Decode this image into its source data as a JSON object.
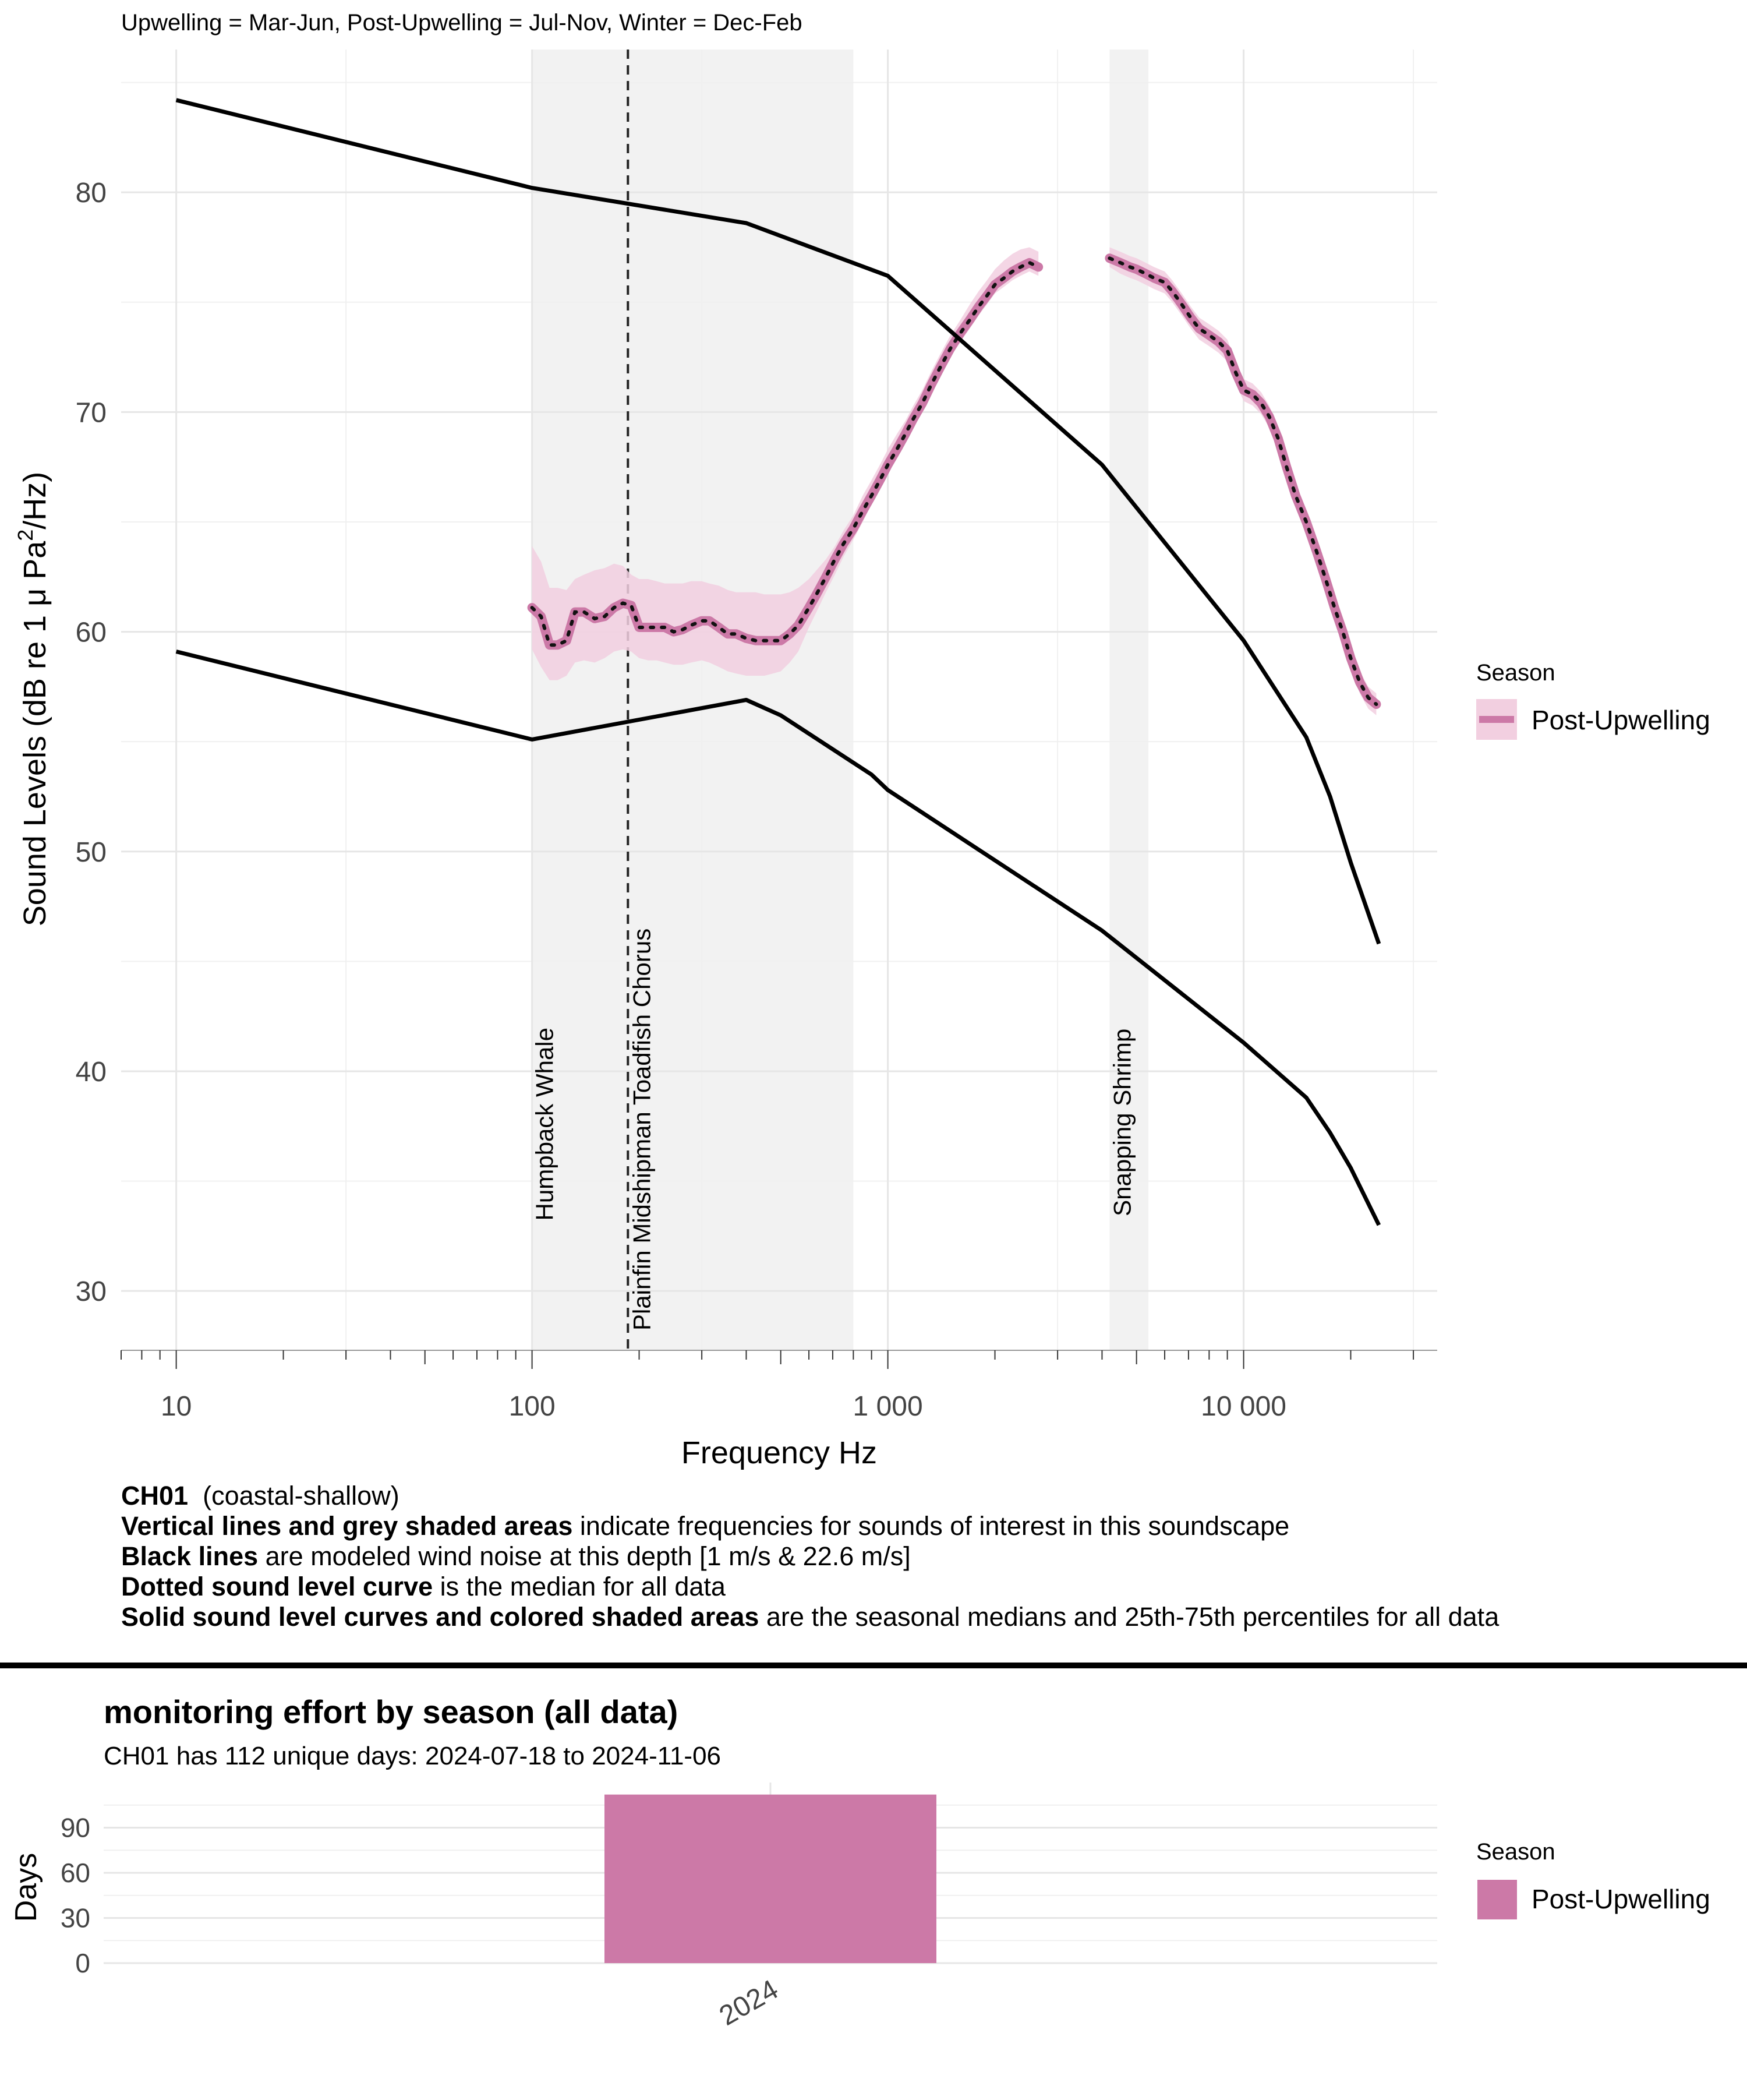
{
  "header_note": "Upwelling = Mar-Jun, Post-Upwelling = Jul-Nov, Winter = Dec-Feb",
  "colors": {
    "season": "#cc79a7",
    "season_band": "#f2cfe0",
    "shade": "#f2f2f2",
    "grid": "#e6e6e6",
    "model": "#000000"
  },
  "legend": {
    "title": "Season",
    "items": [
      "Post-Upwelling"
    ]
  },
  "caption": {
    "line1_bold": "CH01",
    "line1_rest": "(coastal-shallow)",
    "line2_bold": "Vertical  lines and grey shaded areas",
    "line2_rest": "indicate frequencies for sounds of interest in this soundscape",
    "line3_bold": "Black lines",
    "line3_rest": "are modeled wind noise at this depth [1 m/s & 22.6 m/s]",
    "line4_bold": "Dotted sound level curve",
    "line4_rest": "is the median for all data",
    "line5_bold": "Solid sound level curves and colored shaded areas",
    "line5_rest": "are the seasonal medians and 25th-75th percentiles for all data"
  },
  "effort": {
    "title": "monitoring effort by season (all data)",
    "subtitle": "CH01 has 112 unique days: 2024-07-18 to 2024-11-06"
  },
  "chart_data": [
    {
      "type": "line",
      "title": "",
      "xlabel": "Frequency Hz",
      "ylabel_parts": [
        "Sound Levels (dB re 1 μ Pa",
        "2",
        "/Hz)"
      ],
      "x_scale": "log10",
      "xlim": [
        7,
        35000
      ],
      "ylim": [
        27.3,
        86.5
      ],
      "x_ticks": [
        10,
        100,
        1000,
        10000
      ],
      "x_tick_labels": [
        "10",
        "100",
        "1 000",
        "10 000"
      ],
      "y_ticks": [
        30,
        40,
        50,
        60,
        70,
        80
      ],
      "y_tick_labels": [
        "30",
        "40",
        "50",
        "60",
        "70",
        "80"
      ],
      "annotations": [
        {
          "label": "Humpback Whale",
          "band": [
            100,
            800
          ]
        },
        {
          "label": "Plainfin Midshipman Toadfish Chorus",
          "line": 186
        },
        {
          "label": "Snapping Shrimp",
          "band": [
            4200,
            5400
          ]
        }
      ],
      "model_lines": [
        {
          "name": "wind 22.6 m/s",
          "x": [
            10,
            100,
            400,
            1000,
            4000,
            10000,
            15000,
            17500,
            20000,
            24000
          ],
          "y": [
            84.2,
            80.2,
            78.6,
            76.2,
            67.6,
            59.6,
            55.2,
            52.5,
            49.5,
            45.8
          ]
        },
        {
          "name": "wind 1 m/s",
          "x": [
            10,
            100,
            400,
            500,
            900,
            1000,
            4000,
            10000,
            15000,
            17500,
            20000,
            24000
          ],
          "y": [
            59.1,
            55.1,
            56.9,
            56.2,
            53.5,
            52.8,
            46.4,
            41.3,
            38.8,
            37.2,
            35.6,
            33.0
          ]
        }
      ],
      "series": [
        {
          "name": "Post-Upwelling",
          "segment": 1,
          "x": [
            100,
            106,
            112,
            118,
            125,
            132,
            140,
            150,
            160,
            170,
            180,
            190,
            200,
            212,
            224,
            236,
            250,
            265,
            280,
            300,
            315,
            335,
            355,
            375,
            400,
            425,
            450,
            475,
            500,
            530,
            560,
            600,
            630,
            670,
            710,
            750,
            800,
            850,
            900,
            950,
            1000,
            1060,
            1120,
            1180,
            1250,
            1320,
            1400,
            1500,
            1600,
            1700,
            1800,
            1900,
            2000,
            2120,
            2240,
            2360,
            2500,
            2650
          ],
          "y": [
            61.1,
            60.7,
            59.4,
            59.4,
            59.6,
            60.9,
            60.9,
            60.6,
            60.7,
            61.1,
            61.3,
            61.2,
            60.2,
            60.2,
            60.2,
            60.2,
            60.0,
            60.1,
            60.3,
            60.5,
            60.5,
            60.2,
            59.9,
            59.9,
            59.7,
            59.6,
            59.6,
            59.6,
            59.6,
            59.9,
            60.3,
            61.1,
            61.7,
            62.5,
            63.3,
            64.0,
            64.7,
            65.5,
            66.2,
            66.9,
            67.6,
            68.3,
            69.0,
            69.7,
            70.4,
            71.2,
            72.0,
            72.9,
            73.6,
            74.2,
            74.8,
            75.3,
            75.8,
            76.1,
            76.4,
            76.6,
            76.8,
            76.6
          ],
          "p25": [
            59.2,
            58.4,
            57.8,
            57.8,
            58.0,
            58.6,
            58.7,
            58.6,
            58.8,
            59.1,
            59.2,
            59.1,
            58.8,
            58.7,
            58.7,
            58.6,
            58.5,
            58.5,
            58.6,
            58.7,
            58.6,
            58.4,
            58.2,
            58.1,
            58.0,
            58.0,
            58.0,
            58.1,
            58.2,
            58.6,
            59.1,
            60.2,
            60.9,
            61.8,
            62.6,
            63.4,
            64.2,
            65.0,
            65.8,
            66.5,
            67.2,
            67.9,
            68.6,
            69.3,
            70.0,
            70.8,
            71.6,
            72.5,
            73.2,
            73.8,
            74.4,
            74.9,
            75.4,
            75.7,
            76.0,
            76.2,
            76.4,
            76.2
          ],
          "p75": [
            63.9,
            63.2,
            62.0,
            62.0,
            61.9,
            62.4,
            62.6,
            62.8,
            62.9,
            63.1,
            63.0,
            62.6,
            62.4,
            62.4,
            62.3,
            62.2,
            62.2,
            62.2,
            62.3,
            62.3,
            62.2,
            62.1,
            61.9,
            61.8,
            61.8,
            61.8,
            61.7,
            61.7,
            61.7,
            61.8,
            62.0,
            62.4,
            62.8,
            63.3,
            63.9,
            64.6,
            65.3,
            66.2,
            66.9,
            67.6,
            68.3,
            69.0,
            69.6,
            70.3,
            71.0,
            71.8,
            72.6,
            73.5,
            74.2,
            74.9,
            75.5,
            76.0,
            76.5,
            76.9,
            77.2,
            77.4,
            77.5,
            77.3
          ]
        },
        {
          "name": "Post-Upwelling",
          "segment": 2,
          "x": [
            4200,
            4500,
            4800,
            5000,
            5300,
            5600,
            6000,
            6300,
            6700,
            7100,
            7500,
            8000,
            8500,
            9000,
            9500,
            10000,
            10600,
            11200,
            11800,
            12500,
            13200,
            14000,
            15000,
            16000,
            17000,
            18000,
            19000,
            20000,
            21200,
            22400,
            23600
          ],
          "y": [
            77.0,
            76.8,
            76.6,
            76.5,
            76.3,
            76.1,
            75.9,
            75.5,
            74.9,
            74.3,
            73.8,
            73.5,
            73.2,
            72.8,
            71.8,
            71.0,
            70.8,
            70.4,
            69.8,
            68.8,
            67.5,
            66.2,
            65.0,
            63.7,
            62.4,
            61.1,
            60.0,
            58.8,
            57.7,
            57.0,
            56.7
          ],
          "p25": [
            76.6,
            76.3,
            76.1,
            76.0,
            75.8,
            75.6,
            75.4,
            75.0,
            74.4,
            73.8,
            73.3,
            73.0,
            72.7,
            72.3,
            71.3,
            70.5,
            70.3,
            69.9,
            69.3,
            68.3,
            67.0,
            65.7,
            64.5,
            63.2,
            61.9,
            60.6,
            59.5,
            58.3,
            57.2,
            56.5,
            56.2
          ],
          "p75": [
            77.5,
            77.3,
            77.1,
            77.0,
            76.8,
            76.6,
            76.4,
            76.0,
            75.4,
            74.8,
            74.3,
            74.0,
            73.7,
            73.3,
            72.3,
            71.5,
            71.3,
            70.9,
            70.3,
            69.3,
            68.0,
            66.7,
            65.5,
            64.2,
            62.9,
            61.6,
            60.5,
            59.3,
            58.2,
            57.5,
            57.2
          ]
        }
      ]
    },
    {
      "type": "bar",
      "title": "monitoring effort by season (all data)",
      "xlabel": "",
      "ylabel": "Days",
      "categories": [
        "2024"
      ],
      "series": [
        {
          "name": "Post-Upwelling",
          "values": [
            112
          ]
        }
      ],
      "ylim": [
        0,
        120
      ],
      "y_ticks": [
        0,
        30,
        60,
        90
      ],
      "y_tick_labels": [
        "0",
        "30",
        "60",
        "90"
      ]
    }
  ]
}
